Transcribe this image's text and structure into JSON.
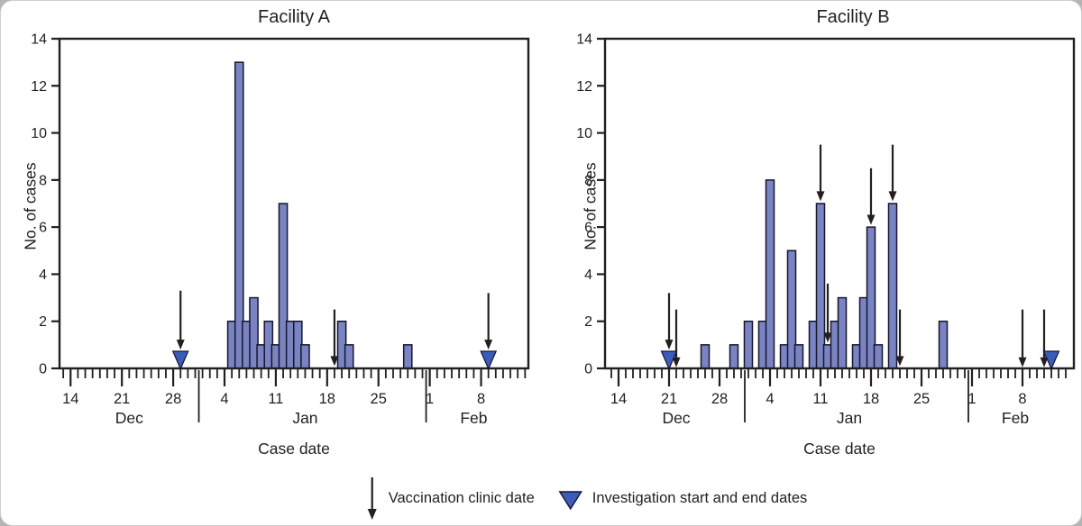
{
  "page": {
    "background": "#b4b4b4",
    "card_color": "#ffffff"
  },
  "colors": {
    "bar_fill": "#7a84c2",
    "bar_stroke": "#16162e",
    "triangle_fill": "#3b5cb8",
    "axis": "#231f20"
  },
  "legend": {
    "arrow_label": "Vaccination clinic date",
    "triangle_label": "Investigation start and end dates"
  },
  "chart_data": [
    {
      "type": "bar",
      "title": "Facility A",
      "ylabel": "No. of cases",
      "xlabel": "Case date",
      "ylim": [
        0,
        14
      ],
      "yticks": [
        0,
        2,
        4,
        6,
        8,
        10,
        12,
        14
      ],
      "xticks": [
        "Dec 14",
        "Dec 21",
        "Dec 28",
        "Jan 4",
        "Jan 11",
        "Jan 18",
        "Jan 25",
        "Feb 1",
        "Feb 8"
      ],
      "month_labels": [
        {
          "text": "Dec",
          "at": "Dec 22"
        },
        {
          "text": "Jan",
          "at": "Jan 15"
        },
        {
          "text": "Feb",
          "at": "Feb 7"
        }
      ],
      "separators": [
        [
          "Dec 31",
          "Jan 1"
        ],
        [
          "Jan 31",
          "Feb 1"
        ]
      ],
      "axis_days": {
        "start": "Dec 13",
        "end": "Feb 14"
      },
      "cases": [
        [
          "Jan 5",
          2
        ],
        [
          "Jan 6",
          13
        ],
        [
          "Jan 7",
          2
        ],
        [
          "Jan 8",
          3
        ],
        [
          "Jan 9",
          1
        ],
        [
          "Jan 10",
          2
        ],
        [
          "Jan 11",
          1
        ],
        [
          "Jan 12",
          7
        ],
        [
          "Jan 13",
          2
        ],
        [
          "Jan 14",
          2
        ],
        [
          "Jan 15",
          1
        ],
        [
          "Jan 20",
          2
        ],
        [
          "Jan 21",
          1
        ],
        [
          "Jan 29",
          1
        ]
      ],
      "vaccination_clinic_arrows": [
        {
          "date": "Dec 29",
          "from": 3.3,
          "to": 0.8
        },
        {
          "date": "Jan 19",
          "from": 2.5,
          "to": 0.1
        },
        {
          "date": "Feb 9",
          "from": 3.2,
          "to": 0.8
        }
      ],
      "investigation_markers": [
        "Dec 29",
        "Feb 9"
      ]
    },
    {
      "type": "bar",
      "title": "Facility B",
      "ylabel": "No. of cases",
      "xlabel": "Case date",
      "ylim": [
        0,
        14
      ],
      "yticks": [
        0,
        2,
        4,
        6,
        8,
        10,
        12,
        14
      ],
      "xticks": [
        "Dec 14",
        "Dec 21",
        "Dec 28",
        "Jan 4",
        "Jan 11",
        "Jan 18",
        "Jan 25",
        "Feb 1",
        "Feb 8"
      ],
      "month_labels": [
        {
          "text": "Dec",
          "at": "Dec 22"
        },
        {
          "text": "Jan",
          "at": "Jan 15"
        },
        {
          "text": "Feb",
          "at": "Feb 7"
        }
      ],
      "separators": [
        [
          "Dec 31",
          "Jan 1"
        ],
        [
          "Jan 31",
          "Feb 1"
        ]
      ],
      "axis_days": {
        "start": "Dec 13",
        "end": "Feb 14"
      },
      "cases": [
        [
          "Dec 26",
          1
        ],
        [
          "Dec 30",
          1
        ],
        [
          "Jan 1",
          2
        ],
        [
          "Jan 3",
          2
        ],
        [
          "Jan 4",
          8
        ],
        [
          "Jan 6",
          1
        ],
        [
          "Jan 7",
          5
        ],
        [
          "Jan 8",
          1
        ],
        [
          "Jan 10",
          2
        ],
        [
          "Jan 11",
          7
        ],
        [
          "Jan 12",
          1
        ],
        [
          "Jan 13",
          2
        ],
        [
          "Jan 14",
          3
        ],
        [
          "Jan 16",
          1
        ],
        [
          "Jan 17",
          3
        ],
        [
          "Jan 18",
          6
        ],
        [
          "Jan 19",
          1
        ],
        [
          "Jan 21",
          7
        ],
        [
          "Jan 28",
          2
        ]
      ],
      "vaccination_clinic_arrows": [
        {
          "date": "Dec 21",
          "from": 3.2,
          "to": 0.8
        },
        {
          "date": "Dec 22",
          "from": 2.5,
          "to": 0.05
        },
        {
          "date": "Jan 11",
          "from": 9.5,
          "to": 7.1
        },
        {
          "date": "Jan 12",
          "from": 3.6,
          "to": 1.1
        },
        {
          "date": "Jan 18",
          "from": 8.5,
          "to": 6.1
        },
        {
          "date": "Jan 21",
          "from": 9.5,
          "to": 7.1
        },
        {
          "date": "Jan 22",
          "from": 2.5,
          "to": 0.1
        },
        {
          "date": "Feb 8",
          "from": 2.5,
          "to": 0.05
        },
        {
          "date": "Feb 11",
          "from": 2.5,
          "to": 0.05
        }
      ],
      "investigation_markers": [
        "Dec 21",
        "Feb 12"
      ]
    }
  ]
}
